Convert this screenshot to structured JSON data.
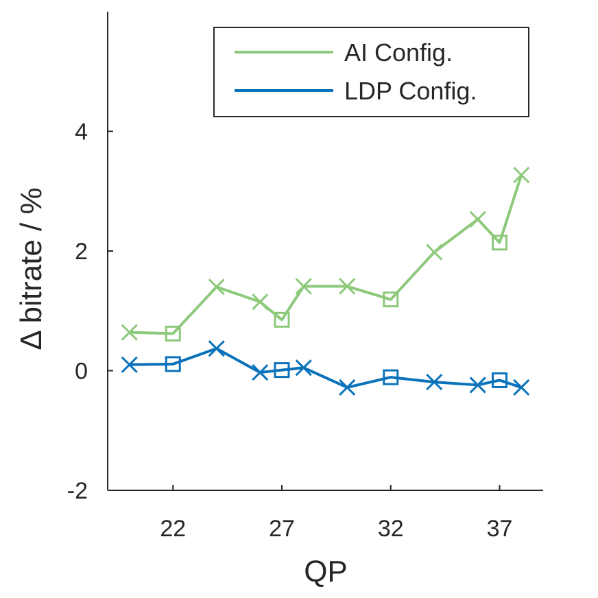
{
  "chart_data": {
    "type": "line",
    "title": "",
    "xlabel": "QP",
    "ylabel": "Δ bitrate / %",
    "xlim": [
      19,
      39
    ],
    "ylim": [
      -2,
      6
    ],
    "xticks": [
      22,
      27,
      32,
      37
    ],
    "yticks": [
      -2,
      0,
      2,
      4
    ],
    "x_tick_labels": [
      "22",
      "27",
      "32",
      "37"
    ],
    "y_tick_labels": [
      "-2",
      "0",
      "2",
      "4"
    ],
    "grid": false,
    "legend_position": "top-right",
    "series": [
      {
        "name": "AI Config.",
        "color": "#8DC97B",
        "x": [
          20,
          22,
          24,
          26,
          27,
          28,
          30,
          32,
          34,
          36,
          37,
          38
        ],
        "values": [
          0.64,
          0.62,
          1.4,
          1.15,
          0.85,
          1.41,
          1.41,
          1.19,
          1.98,
          2.53,
          2.14,
          3.27
        ],
        "markers": [
          "x",
          "square",
          "x",
          "x",
          "square",
          "x",
          "x",
          "square",
          "x",
          "x",
          "square",
          "x"
        ]
      },
      {
        "name": "LDP Config.",
        "color": "#0A72BA",
        "x": [
          20,
          22,
          24,
          26,
          27,
          28,
          30,
          32,
          34,
          36,
          37,
          38
        ],
        "values": [
          0.1,
          0.11,
          0.37,
          -0.03,
          0.01,
          0.05,
          -0.28,
          -0.11,
          -0.19,
          -0.24,
          -0.16,
          -0.28
        ],
        "markers": [
          "x",
          "square",
          "x",
          "x",
          "square",
          "x",
          "x",
          "square",
          "x",
          "x",
          "square",
          "x"
        ]
      }
    ]
  }
}
